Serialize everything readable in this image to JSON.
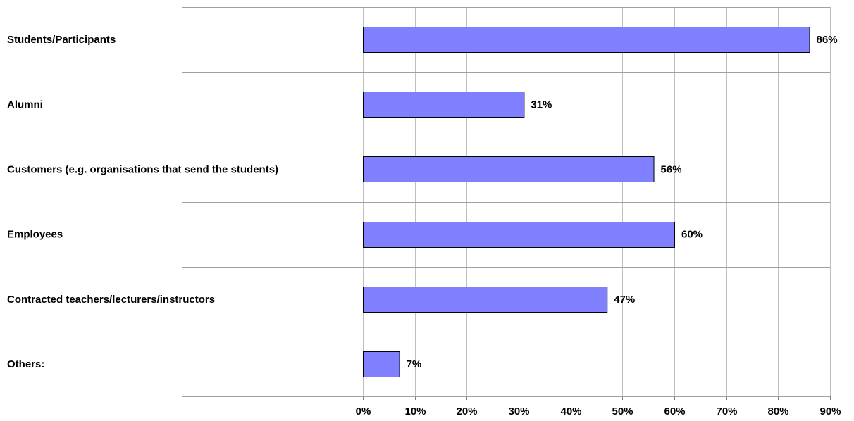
{
  "chart_data": {
    "type": "bar",
    "orientation": "horizontal",
    "title": "",
    "xlabel": "",
    "ylabel": "",
    "categories": [
      "Students/Participants",
      "Alumni",
      "Customers (e.g. organisations that send the students)",
      "Employees",
      "Contracted teachers/lecturers/instructors",
      "Others:"
    ],
    "values": [
      86,
      31,
      56,
      60,
      47,
      7
    ],
    "data_labels": [
      "86%",
      "31%",
      "56%",
      "60%",
      "47%",
      "7%"
    ],
    "xlim": [
      0,
      90
    ],
    "x_ticks": [
      0,
      10,
      20,
      30,
      40,
      50,
      60,
      70,
      80,
      90
    ],
    "x_tick_labels": [
      "0%",
      "10%",
      "20%",
      "30%",
      "40%",
      "50%",
      "60%",
      "70%",
      "80%",
      "90%"
    ],
    "grid": "vertical",
    "legend": "none",
    "bar_color": "#8080ff"
  }
}
